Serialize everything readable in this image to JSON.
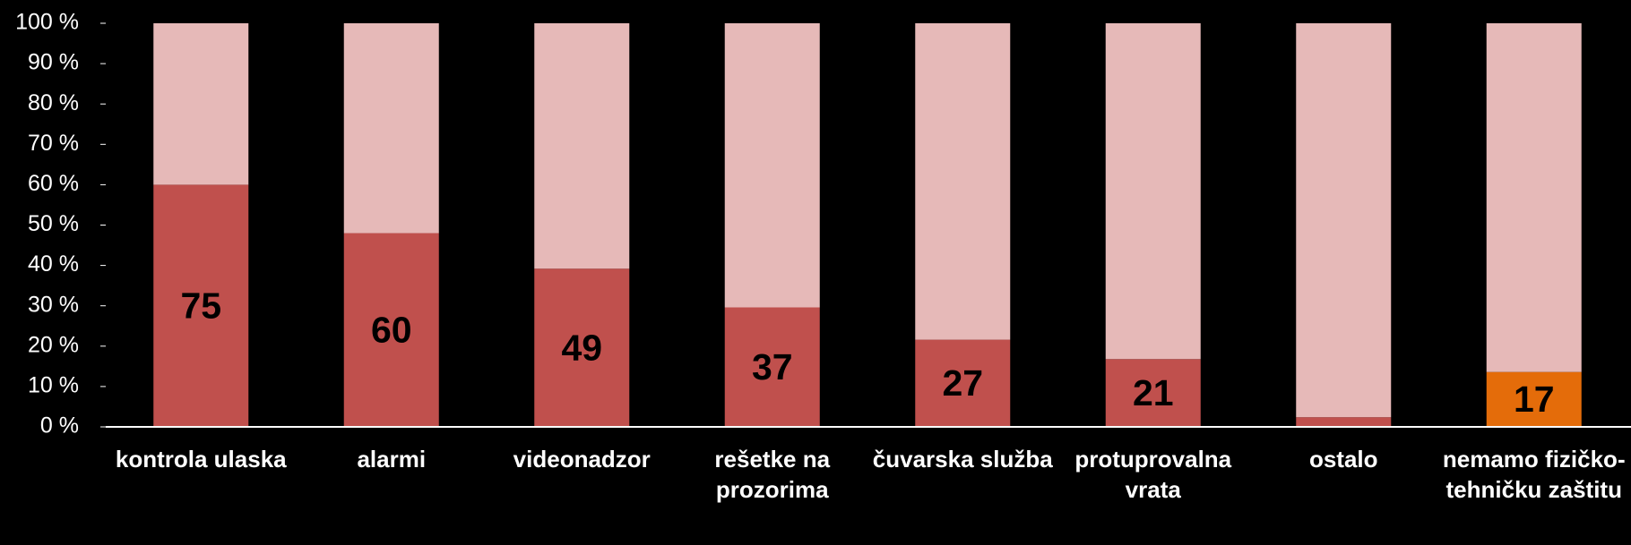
{
  "chart_data": {
    "type": "stacked_percent_bar",
    "categories": [
      "kontrola ulaska",
      "alarmi",
      "videonadzor",
      "rešetke na prozorima",
      "čuvarska služba",
      "protuprovalna vrata",
      "ostalo",
      "nemamo fizičko-tehničku zaštitu"
    ],
    "series": [
      {
        "color": "#c0504d",
        "point_colors": [
          "#c0504d",
          "#c0504d",
          "#c0504d",
          "#c0504d",
          "#c0504d",
          "#c0504d",
          "#c0504d",
          "#e46c0a"
        ],
        "values": [
          75,
          60,
          49,
          37,
          27,
          21,
          3,
          17
        ],
        "data_labels": true
      },
      {
        "color": "#e6b9b8",
        "values": [
          50,
          65,
          76,
          88,
          98,
          104,
          122,
          108
        ],
        "data_labels": false
      }
    ],
    "ylim": [
      0,
      100
    ],
    "yticks": [
      {
        "value": 0,
        "label": "0 %"
      },
      {
        "value": 10,
        "label": "10 %"
      },
      {
        "value": 20,
        "label": "20 %"
      },
      {
        "value": 30,
        "label": "30 %"
      },
      {
        "value": 40,
        "label": "40 %"
      },
      {
        "value": 50,
        "label": "50 %"
      },
      {
        "value": 60,
        "label": "60 %"
      },
      {
        "value": 70,
        "label": "70 %"
      },
      {
        "value": 80,
        "label": "80 %"
      },
      {
        "value": 90,
        "label": "90 %"
      },
      {
        "value": 100,
        "label": "100 %"
      }
    ]
  }
}
